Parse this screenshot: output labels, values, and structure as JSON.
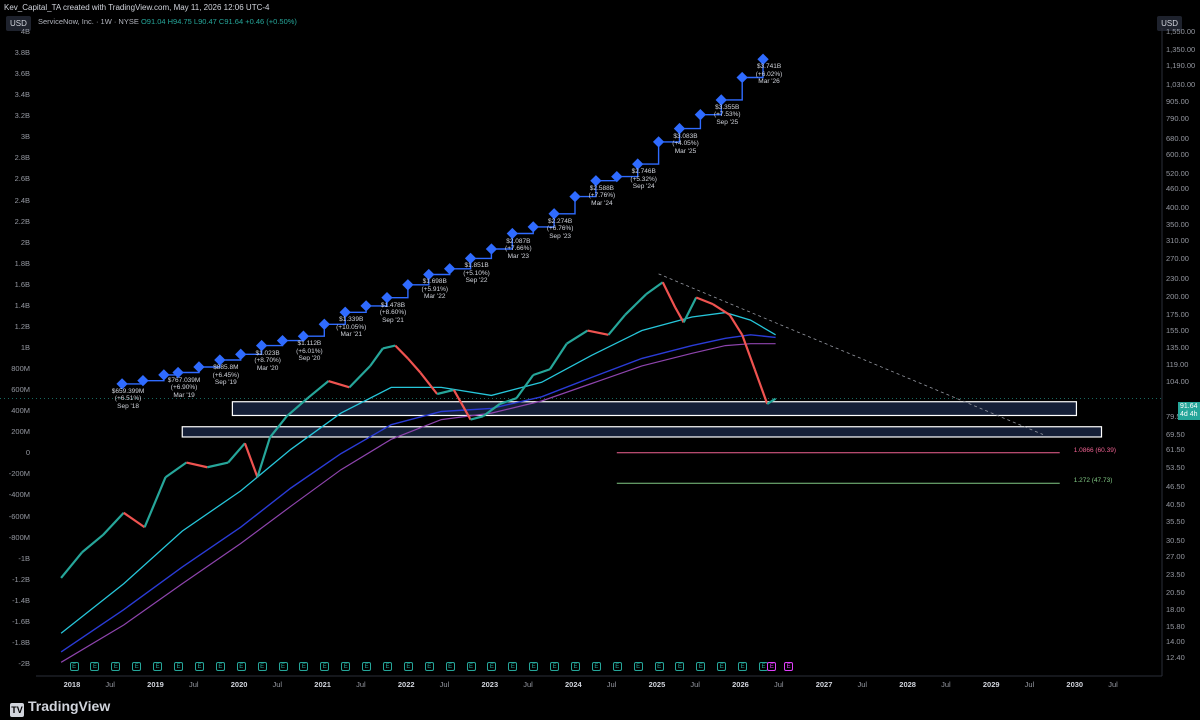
{
  "header": {
    "author_line": "Kev_Capital_TA created with TradingView.com, May 11, 2026 12:06 UTC-4",
    "symbol": "ServiceNow, Inc. · 1W · NYSE",
    "ohlc": "O91.04 H94.75 L90.47 C91.64 +0.46 (+0.50%)",
    "currency": "USD"
  },
  "colors": {
    "up": "#26a69a",
    "down": "#ef5350",
    "ema_fast": "#26c6da",
    "ema_mid": "#2a3bd6",
    "ema_slow": "#8e44ad",
    "revenue": "#2f6bff",
    "zone": "#1c2a4a",
    "fib_red": "#f06292",
    "fib_green": "#81c784"
  },
  "footer": {
    "brand": "TradingView"
  },
  "chart_data": {
    "type": "line",
    "title": "ServiceNow, Inc. · 1W · NYSE",
    "x_ticks": [
      "2018",
      "Jul",
      "2019",
      "Jul",
      "2020",
      "Jul",
      "2021",
      "Jul",
      "2022",
      "Jul",
      "2023",
      "Jul",
      "2024",
      "Jul",
      "2025",
      "Jul",
      "2026",
      "Jul",
      "2027",
      "Jul",
      "2028",
      "Jul",
      "2029",
      "Jul",
      "2030",
      "Jul"
    ],
    "year_ticks": [
      "2018",
      "2019",
      "2020",
      "2021",
      "2022",
      "2023",
      "2024",
      "2025",
      "2026",
      "2027",
      "2028",
      "2029",
      "2030"
    ],
    "left_axis_ticks": [
      "4B",
      "3.8B",
      "3.6B",
      "3.4B",
      "3.2B",
      "3B",
      "2.8B",
      "2.6B",
      "2.4B",
      "2.2B",
      "2B",
      "1.8B",
      "1.6B",
      "1.4B",
      "1.2B",
      "1B",
      "800M",
      "600M",
      "400M",
      "200M",
      "0",
      "-200M",
      "-400M",
      "-600M",
      "-800M",
      "-1B",
      "-1.2B",
      "-1.4B",
      "-1.6B",
      "-1.8B",
      "-2B"
    ],
    "right_axis_ticks": [
      "1,550.00",
      "1,350.00",
      "1,190.00",
      "1,030.00",
      "905.00",
      "790.00",
      "680.00",
      "600.00",
      "520.00",
      "460.00",
      "400.00",
      "350.00",
      "310.00",
      "270.00",
      "230.00",
      "200.00",
      "175.00",
      "155.00",
      "135.00",
      "119.00",
      "104.00",
      "91.64",
      "79.50",
      "69.50",
      "61.50",
      "53.50",
      "46.50",
      "40.50",
      "35.50",
      "30.50",
      "27.00",
      "23.50",
      "20.50",
      "18.00",
      "15.80",
      "14.00",
      "12.40"
    ],
    "last_price": "91.64",
    "countdown": "4d 4h",
    "revenue_series": {
      "name": "Quarterly Revenue",
      "points": [
        {
          "date": "2018.58",
          "value": 659399000
        },
        {
          "date": "2018.83",
          "value": 690000000
        },
        {
          "date": "2019.08",
          "value": 745000000
        },
        {
          "date": "2019.25",
          "value": 767039000
        },
        {
          "date": "2019.50",
          "value": 820000000
        },
        {
          "date": "2019.75",
          "value": 885800000
        },
        {
          "date": "2020.00",
          "value": 940000000
        },
        {
          "date": "2020.25",
          "value": 1023000000
        },
        {
          "date": "2020.50",
          "value": 1070000000
        },
        {
          "date": "2020.75",
          "value": 1112000000
        },
        {
          "date": "2021.00",
          "value": 1225000000
        },
        {
          "date": "2021.25",
          "value": 1339000000
        },
        {
          "date": "2021.50",
          "value": 1400000000
        },
        {
          "date": "2021.75",
          "value": 1478000000
        },
        {
          "date": "2022.00",
          "value": 1600000000
        },
        {
          "date": "2022.25",
          "value": 1698000000
        },
        {
          "date": "2022.50",
          "value": 1752000000
        },
        {
          "date": "2022.75",
          "value": 1851000000
        },
        {
          "date": "2023.00",
          "value": 1940000000
        },
        {
          "date": "2023.25",
          "value": 2087000000
        },
        {
          "date": "2023.50",
          "value": 2150000000
        },
        {
          "date": "2023.75",
          "value": 2274000000
        },
        {
          "date": "2024.00",
          "value": 2437000000
        },
        {
          "date": "2024.25",
          "value": 2588000000
        },
        {
          "date": "2024.50",
          "value": 2627000000
        },
        {
          "date": "2024.75",
          "value": 2746000000
        },
        {
          "date": "2025.00",
          "value": 2957000000
        },
        {
          "date": "2025.25",
          "value": 3083000000
        },
        {
          "date": "2025.50",
          "value": 3215000000
        },
        {
          "date": "2025.75",
          "value": 3355000000
        },
        {
          "date": "2026.00",
          "value": 3568000000
        },
        {
          "date": "2026.25",
          "value": 3741000000
        }
      ],
      "labels": [
        {
          "date": "2018.58",
          "value": 659399000,
          "text": [
            "$659.399M",
            "(+6.51%)",
            "Sep '18"
          ]
        },
        {
          "date": "2019.25",
          "value": 767039000,
          "text": [
            "$767.039M",
            "(+6.90%)",
            "Mar '19"
          ]
        },
        {
          "date": "2019.75",
          "value": 885800000,
          "text": [
            "$885.8M",
            "(+6.45%)",
            "Sep '19"
          ]
        },
        {
          "date": "2020.25",
          "value": 1023000000,
          "text": [
            "$1.023B",
            "(+8.70%)",
            "Mar '20"
          ]
        },
        {
          "date": "2020.75",
          "value": 1112000000,
          "text": [
            "$1.112B",
            "(+6.01%)",
            "Sep '20"
          ]
        },
        {
          "date": "2021.25",
          "value": 1339000000,
          "text": [
            "$1.339B",
            "(+10.05%)",
            "Mar '21"
          ]
        },
        {
          "date": "2021.75",
          "value": 1478000000,
          "text": [
            "$1.478B",
            "(+8.60%)",
            "Sep '21"
          ]
        },
        {
          "date": "2022.25",
          "value": 1698000000,
          "text": [
            "$1.698B",
            "(+5.91%)",
            "Mar '22"
          ]
        },
        {
          "date": "2022.75",
          "value": 1851000000,
          "text": [
            "$1.851B",
            "(+5.10%)",
            "Sep '22"
          ]
        },
        {
          "date": "2023.25",
          "value": 2087000000,
          "text": [
            "$2.087B",
            "(+7.66%)",
            "Mar '23"
          ]
        },
        {
          "date": "2023.75",
          "value": 2274000000,
          "text": [
            "$2.274B",
            "(+6.76%)",
            "Sep '23"
          ]
        },
        {
          "date": "2024.25",
          "value": 2588000000,
          "text": [
            "$2.588B",
            "(+7.76%)",
            "Mar '24"
          ]
        },
        {
          "date": "2024.75",
          "value": 2746000000,
          "text": [
            "$2.746B",
            "(+5.32%)",
            "Sep '24"
          ]
        },
        {
          "date": "2025.25",
          "value": 3083000000,
          "text": [
            "$3.083B",
            "(+4.05%)",
            "Mar '25"
          ]
        },
        {
          "date": "2025.75",
          "value": 3355000000,
          "text": [
            "$3.355B",
            "(+7.53%)",
            "Sep '25"
          ]
        },
        {
          "date": "2026.25",
          "value": 3741000000,
          "text": [
            "$3.741B",
            "(+6.02%)",
            "Mar '26"
          ]
        }
      ]
    },
    "price_series": {
      "name": "Weekly close",
      "points": [
        {
          "date": "2017.85",
          "value": 23
        },
        {
          "date": "2018.10",
          "value": 28
        },
        {
          "date": "2018.35",
          "value": 32
        },
        {
          "date": "2018.60",
          "value": 38
        },
        {
          "date": "2018.85",
          "value": 34
        },
        {
          "date": "2019.10",
          "value": 50
        },
        {
          "date": "2019.35",
          "value": 56
        },
        {
          "date": "2019.60",
          "value": 54
        },
        {
          "date": "2019.85",
          "value": 56
        },
        {
          "date": "2020.05",
          "value": 65
        },
        {
          "date": "2020.20",
          "value": 50
        },
        {
          "date": "2020.35",
          "value": 68
        },
        {
          "date": "2020.55",
          "value": 80
        },
        {
          "date": "2020.80",
          "value": 92
        },
        {
          "date": "2021.05",
          "value": 105
        },
        {
          "date": "2021.30",
          "value": 100
        },
        {
          "date": "2021.55",
          "value": 118
        },
        {
          "date": "2021.70",
          "value": 135
        },
        {
          "date": "2021.85",
          "value": 138
        },
        {
          "date": "2022.00",
          "value": 125
        },
        {
          "date": "2022.15",
          "value": 112
        },
        {
          "date": "2022.35",
          "value": 95
        },
        {
          "date": "2022.55",
          "value": 98
        },
        {
          "date": "2022.75",
          "value": 78
        },
        {
          "date": "2022.90",
          "value": 80
        },
        {
          "date": "2023.10",
          "value": 88
        },
        {
          "date": "2023.30",
          "value": 92
        },
        {
          "date": "2023.50",
          "value": 110
        },
        {
          "date": "2023.70",
          "value": 115
        },
        {
          "date": "2023.90",
          "value": 140
        },
        {
          "date": "2024.15",
          "value": 155
        },
        {
          "date": "2024.40",
          "value": 150
        },
        {
          "date": "2024.60",
          "value": 175
        },
        {
          "date": "2024.85",
          "value": 205
        },
        {
          "date": "2025.05",
          "value": 225
        },
        {
          "date": "2025.20",
          "value": 185
        },
        {
          "date": "2025.30",
          "value": 165
        },
        {
          "date": "2025.45",
          "value": 200
        },
        {
          "date": "2025.65",
          "value": 190
        },
        {
          "date": "2025.85",
          "value": 175
        },
        {
          "date": "2026.00",
          "value": 150
        },
        {
          "date": "2026.15",
          "value": 115
        },
        {
          "date": "2026.30",
          "value": 88
        },
        {
          "date": "2026.40",
          "value": 91.64
        }
      ]
    },
    "ema_fast": {
      "points": [
        {
          "date": "2017.85",
          "value": 15
        },
        {
          "date": "2018.60",
          "value": 22
        },
        {
          "date": "2019.30",
          "value": 33
        },
        {
          "date": "2020.00",
          "value": 45
        },
        {
          "date": "2020.60",
          "value": 62
        },
        {
          "date": "2021.20",
          "value": 82
        },
        {
          "date": "2021.80",
          "value": 100
        },
        {
          "date": "2022.40",
          "value": 100
        },
        {
          "date": "2023.00",
          "value": 94
        },
        {
          "date": "2023.60",
          "value": 104
        },
        {
          "date": "2024.20",
          "value": 128
        },
        {
          "date": "2024.80",
          "value": 155
        },
        {
          "date": "2025.40",
          "value": 172
        },
        {
          "date": "2025.80",
          "value": 178
        },
        {
          "date": "2026.10",
          "value": 168
        },
        {
          "date": "2026.40",
          "value": 150
        }
      ]
    },
    "ema_mid": {
      "points": [
        {
          "date": "2017.85",
          "value": 13
        },
        {
          "date": "2018.60",
          "value": 18
        },
        {
          "date": "2019.30",
          "value": 25
        },
        {
          "date": "2020.00",
          "value": 34
        },
        {
          "date": "2020.60",
          "value": 46
        },
        {
          "date": "2021.20",
          "value": 60
        },
        {
          "date": "2021.80",
          "value": 75
        },
        {
          "date": "2022.40",
          "value": 83
        },
        {
          "date": "2023.00",
          "value": 85
        },
        {
          "date": "2023.60",
          "value": 93
        },
        {
          "date": "2024.20",
          "value": 108
        },
        {
          "date": "2024.80",
          "value": 125
        },
        {
          "date": "2025.40",
          "value": 138
        },
        {
          "date": "2025.80",
          "value": 146
        },
        {
          "date": "2026.10",
          "value": 150
        },
        {
          "date": "2026.40",
          "value": 147
        }
      ]
    },
    "ema_slow": {
      "points": [
        {
          "date": "2017.85",
          "value": 12
        },
        {
          "date": "2018.60",
          "value": 16
        },
        {
          "date": "2019.30",
          "value": 22
        },
        {
          "date": "2020.00",
          "value": 30
        },
        {
          "date": "2020.60",
          "value": 40
        },
        {
          "date": "2021.20",
          "value": 53
        },
        {
          "date": "2021.80",
          "value": 67
        },
        {
          "date": "2022.40",
          "value": 78
        },
        {
          "date": "2023.00",
          "value": 82
        },
        {
          "date": "2023.60",
          "value": 90
        },
        {
          "date": "2024.20",
          "value": 103
        },
        {
          "date": "2024.80",
          "value": 118
        },
        {
          "date": "2025.40",
          "value": 130
        },
        {
          "date": "2025.80",
          "value": 138
        },
        {
          "date": "2026.10",
          "value": 140
        },
        {
          "date": "2026.40",
          "value": 140
        }
      ]
    },
    "trendline": {
      "from": {
        "date": "2025.00",
        "value": 240
      },
      "to": {
        "date": "2029.60",
        "value": 69.5
      }
    },
    "zones": [
      {
        "from": "2019.90",
        "to": "2030.00",
        "low": 80.5,
        "high": 89.5
      },
      {
        "from": "2019.30",
        "to": "2030.30",
        "low": 68.2,
        "high": 73.8
      }
    ],
    "fib_levels": [
      {
        "label": "1.0866 (60.39)",
        "value": 60.39,
        "from": "2024.50",
        "to": "2029.80",
        "color": "#f06292"
      },
      {
        "label": "1.272 (47.73)",
        "value": 47.73,
        "from": "2024.50",
        "to": "2029.80",
        "color": "#81c784"
      }
    ],
    "earnings_markers": [
      "2018.00",
      "2018.25",
      "2018.50",
      "2018.75",
      "2019.00",
      "2019.25",
      "2019.50",
      "2019.75",
      "2020.00",
      "2020.25",
      "2020.50",
      "2020.75",
      "2021.00",
      "2021.25",
      "2021.50",
      "2021.75",
      "2022.00",
      "2022.25",
      "2022.50",
      "2022.75",
      "2023.00",
      "2023.25",
      "2023.50",
      "2023.75",
      "2024.00",
      "2024.25",
      "2024.50",
      "2024.75",
      "2025.00",
      "2025.25",
      "2025.50",
      "2025.75",
      "2026.00",
      "2026.25",
      "2026.35",
      "2026.55"
    ],
    "y_left_range": [
      -2000000000,
      4000000000
    ],
    "y_right_log_range": [
      12.4,
      1550
    ],
    "x_range": [
      "2017.55",
      "2031.00"
    ],
    "grid": false,
    "legend": "none"
  }
}
